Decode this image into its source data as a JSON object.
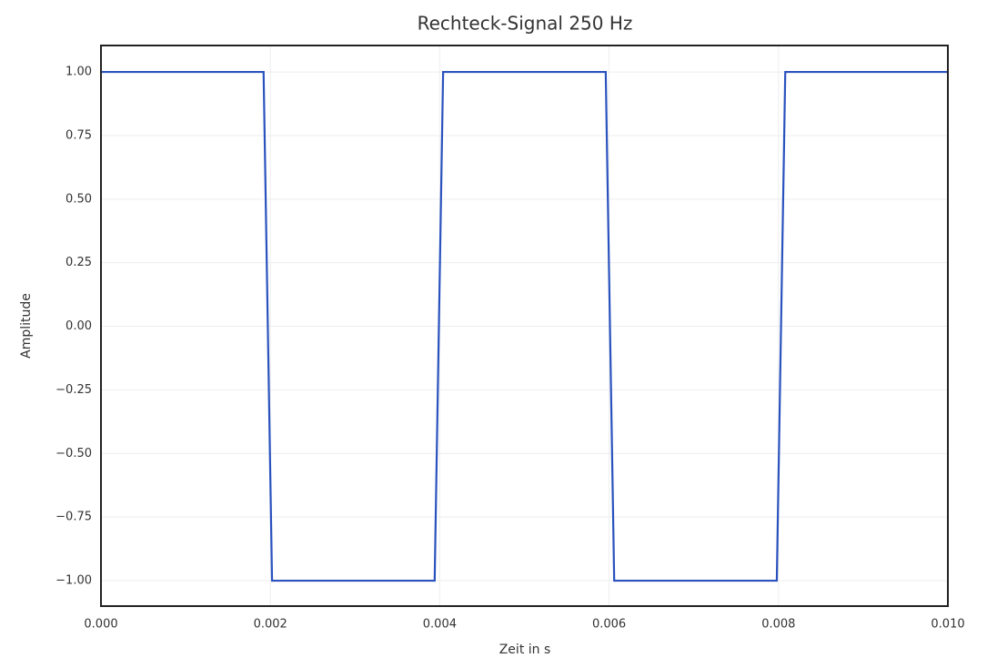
{
  "chart_data": {
    "type": "line",
    "title": "Rechteck-Signal 250 Hz",
    "x_label": "Zeit in s",
    "y_label": "Amplitude",
    "x": [
      0,
      0.00192,
      0.00202,
      0.00394,
      0.00404,
      0.00596,
      0.00606,
      0.00798,
      0.00808,
      0.01
    ],
    "series": [
      {
        "color": "#2a52be",
        "values": [
          1,
          1,
          -1,
          -1,
          1,
          1,
          -1,
          -1,
          1,
          1
        ]
      }
    ],
    "xlim": [
      0,
      0.01
    ],
    "ylim": [
      -1.1,
      1.104
    ],
    "xticks": [
      {
        "value": 0,
        "label": "0.000"
      },
      {
        "value": 0.002,
        "label": "0.002"
      },
      {
        "value": 0.004,
        "label": "0.004"
      },
      {
        "value": 0.006,
        "label": "0.006"
      },
      {
        "value": 0.008,
        "label": "0.008"
      },
      {
        "value": 0.01,
        "label": "0.010"
      }
    ],
    "yticks": [
      {
        "value": -1,
        "label": "−1.00"
      },
      {
        "value": -0.75,
        "label": "−0.75"
      },
      {
        "value": -0.5,
        "label": "−0.50"
      },
      {
        "value": -0.25,
        "label": "−0.25"
      },
      {
        "value": 0,
        "label": "0.00"
      },
      {
        "value": 0.25,
        "label": "0.25"
      },
      {
        "value": 0.5,
        "label": "0.50"
      },
      {
        "value": 0.75,
        "label": "0.75"
      },
      {
        "value": 1,
        "label": "1.00"
      }
    ],
    "grid": true
  }
}
